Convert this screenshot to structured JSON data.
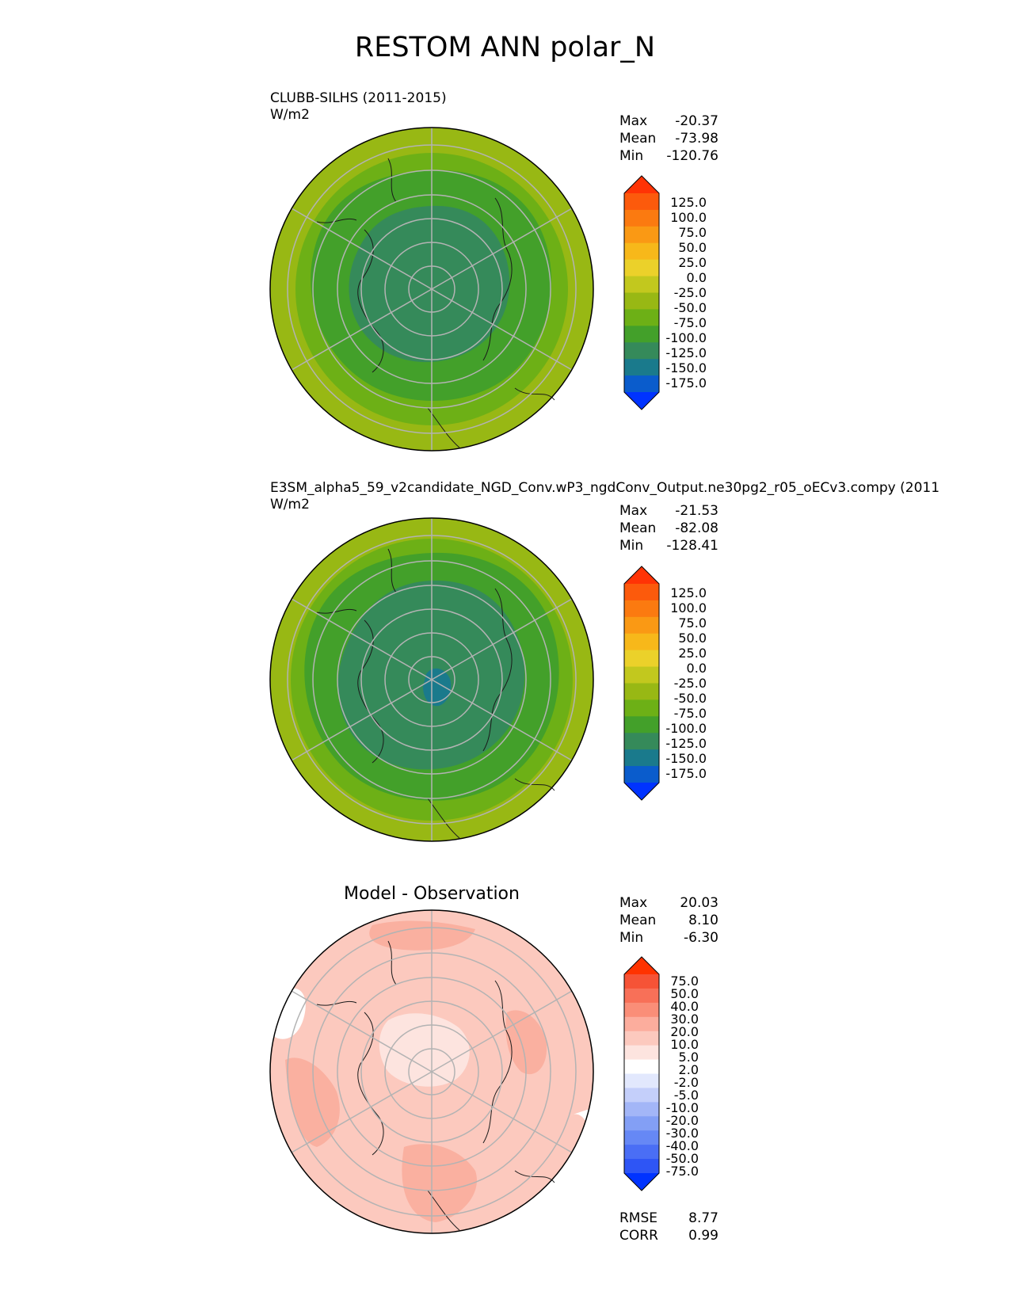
{
  "figure": {
    "title": "RESTOM ANN polar_N"
  },
  "colors": {
    "cmap_main": [
      "#0033ff",
      "#0a5ccc",
      "#1a7a8c",
      "#358a5a",
      "#43a02a",
      "#6db016",
      "#98b814",
      "#c2c81e",
      "#ebd12a",
      "#f7b81a",
      "#fa9914",
      "#fb7a10",
      "#fc5a0c",
      "#ff3305"
    ],
    "cmap_diff": [
      "#0033ff",
      "#2e55f5",
      "#4a6ef5",
      "#6688f5",
      "#839ff5",
      "#a3b6f7",
      "#c4cffa",
      "#e2e8fd",
      "#ffffff",
      "#fde4df",
      "#fcc9be",
      "#fcad9d",
      "#fa8e78",
      "#f87058",
      "#f65336",
      "#ff3300"
    ],
    "ocean_c1": "#6db016",
    "inner_c1": "#358a5a",
    "ring_c1": "#43a02a",
    "outer_c1": "#98b814",
    "blue_patch": "#1a7a8c",
    "diff_base": "#fcc9be",
    "diff_dark": "#fab0a0",
    "diff_light": "#fde4df"
  },
  "panels": [
    {
      "title": "CLUBB-SILHS (2011-2015)",
      "units": "W/m2",
      "stats": [
        {
          "label": "Max",
          "value": "-20.37"
        },
        {
          "label": "Mean",
          "value": "-73.98"
        },
        {
          "label": "Min",
          "value": "-120.76"
        }
      ]
    },
    {
      "title": "E3SM_alpha5_59_v2candidate_NGD_Conv.wP3_ngdConv_Output.ne30pg2_r05_oECv3.compy (2011",
      "units": "W/m2",
      "stats": [
        {
          "label": "Max",
          "value": "-21.53"
        },
        {
          "label": "Mean",
          "value": "-82.08"
        },
        {
          "label": "Min",
          "value": "-128.41"
        }
      ]
    },
    {
      "title": "Model - Observation",
      "stats": [
        {
          "label": "Max",
          "value": "20.03"
        },
        {
          "label": "Mean",
          "value": "8.10"
        },
        {
          "label": "Min",
          "value": "-6.30"
        }
      ],
      "metrics": [
        {
          "label": "RMSE",
          "value": "8.77"
        },
        {
          "label": "CORR",
          "value": "0.99"
        }
      ]
    }
  ],
  "chart_data": [
    {
      "type": "heatmap",
      "title": "CLUBB-SILHS (2011-2015)",
      "projection": "north polar stereographic",
      "variable": "RESTOM",
      "units": "W/m2",
      "stats": {
        "max": -20.37,
        "mean": -73.98,
        "min": -120.76
      },
      "colorbar_levels": [
        "125.0",
        "100.0",
        "75.0",
        "50.0",
        "25.0",
        "0.0",
        "-25.0",
        "-50.0",
        "-75.0",
        "-100.0",
        "-125.0",
        "-150.0",
        "-175.0"
      ]
    },
    {
      "type": "heatmap",
      "title": "E3SM_alpha5_59_v2candidate_NGD_Conv.wP3_ngdConv_Output.ne30pg2_r05_oECv3.compy (2011",
      "projection": "north polar stereographic",
      "variable": "RESTOM",
      "units": "W/m2",
      "stats": {
        "max": -21.53,
        "mean": -82.08,
        "min": -128.41
      },
      "colorbar_levels": [
        "125.0",
        "100.0",
        "75.0",
        "50.0",
        "25.0",
        "0.0",
        "-25.0",
        "-50.0",
        "-75.0",
        "-100.0",
        "-125.0",
        "-150.0",
        "-175.0"
      ]
    },
    {
      "type": "heatmap",
      "title": "Model - Observation",
      "projection": "north polar stereographic",
      "variable": "RESTOM",
      "stats": {
        "max": 20.03,
        "mean": 8.1,
        "min": -6.3
      },
      "metrics": {
        "rmse": 8.77,
        "corr": 0.99
      },
      "colorbar_levels": [
        "75.0",
        "50.0",
        "40.0",
        "30.0",
        "20.0",
        "10.0",
        "5.0",
        "2.0",
        "-2.0",
        "-5.0",
        "-10.0",
        "-20.0",
        "-30.0",
        "-40.0",
        "-50.0",
        "-75.0"
      ]
    }
  ]
}
